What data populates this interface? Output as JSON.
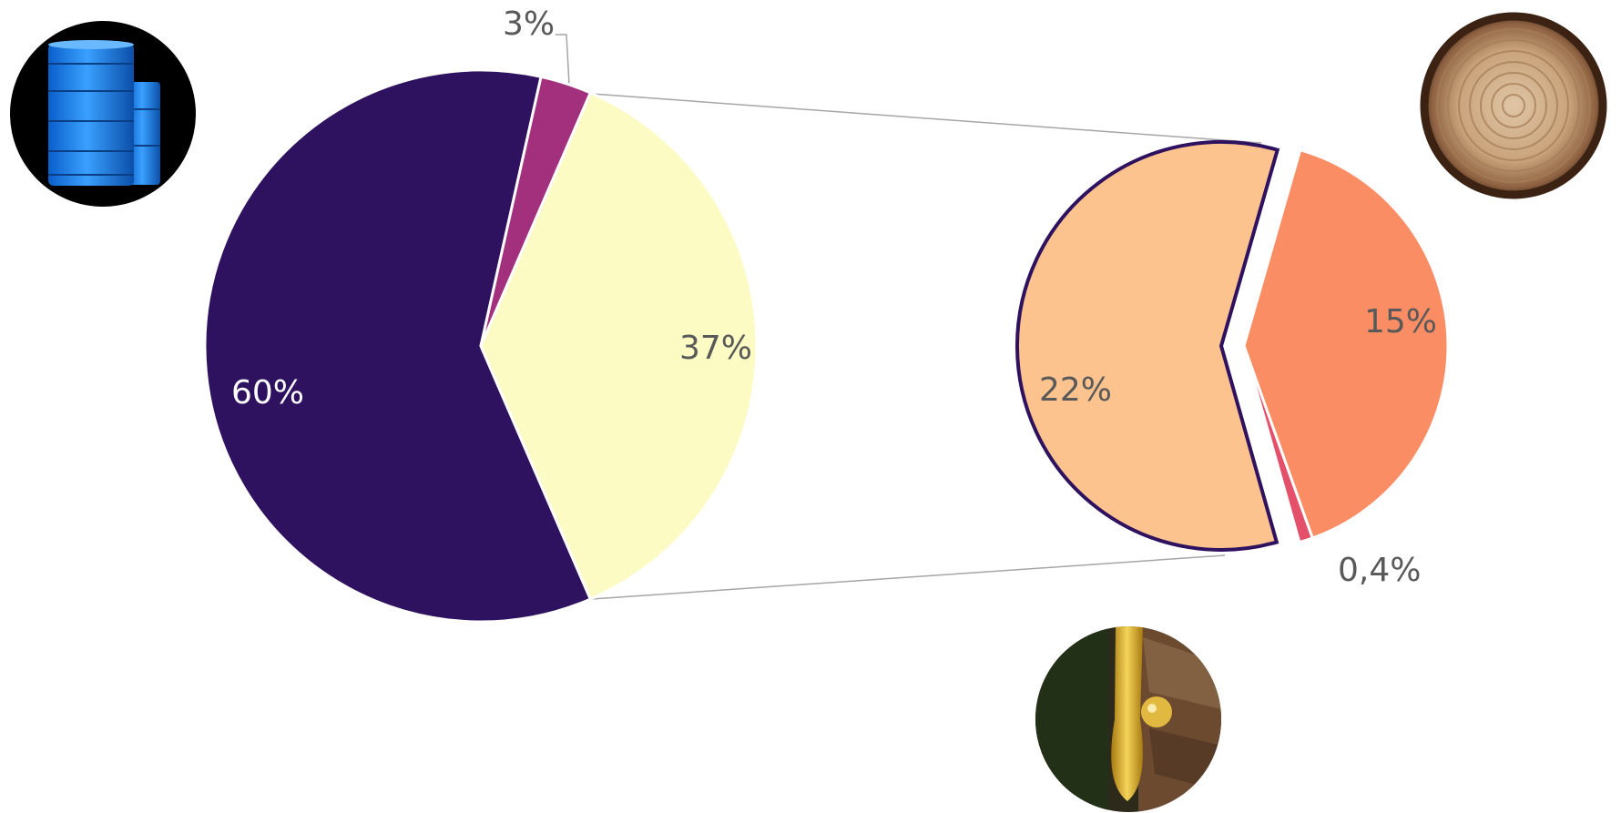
{
  "chart_data": [
    {
      "type": "pie",
      "role": "main",
      "slices": [
        {
          "label": "60%",
          "value": 60,
          "color": "#2e115f",
          "label_color": "#ffffff",
          "label_pos": "inside-left"
        },
        {
          "label": "3%",
          "value": 3,
          "color": "#a3307d",
          "label_color": "#595959",
          "label_pos": "outside-top"
        },
        {
          "label": "37%",
          "value": 37,
          "color": "#fbfbc3",
          "label_color": "#595959",
          "label_pos": "inside-right"
        }
      ],
      "legend": "none"
    },
    {
      "type": "pie",
      "role": "breakdown-of-37%",
      "slices": [
        {
          "label": "15%",
          "value": 15,
          "color": "#fb8d65",
          "label_color": "#595959",
          "label_pos": "inside-right"
        },
        {
          "label": "0,4%",
          "value": 0.4,
          "color": "#e4506a",
          "label_color": "#595959",
          "label_pos": "outside-bottom"
        },
        {
          "label": "22%",
          "value": 22,
          "color": "#fdc38f",
          "label_color": "#595959",
          "label_pos": "inside-left"
        }
      ],
      "legend": "none"
    }
  ],
  "icons": {
    "barrels": "oil-barrels-icon",
    "wood": "wood-log-cross-section-icon",
    "resin": "resin-drop-icon"
  },
  "colors": {
    "connector": "#a6a6a6",
    "exploded_outline": "#2e115f",
    "text": "#595959"
  }
}
